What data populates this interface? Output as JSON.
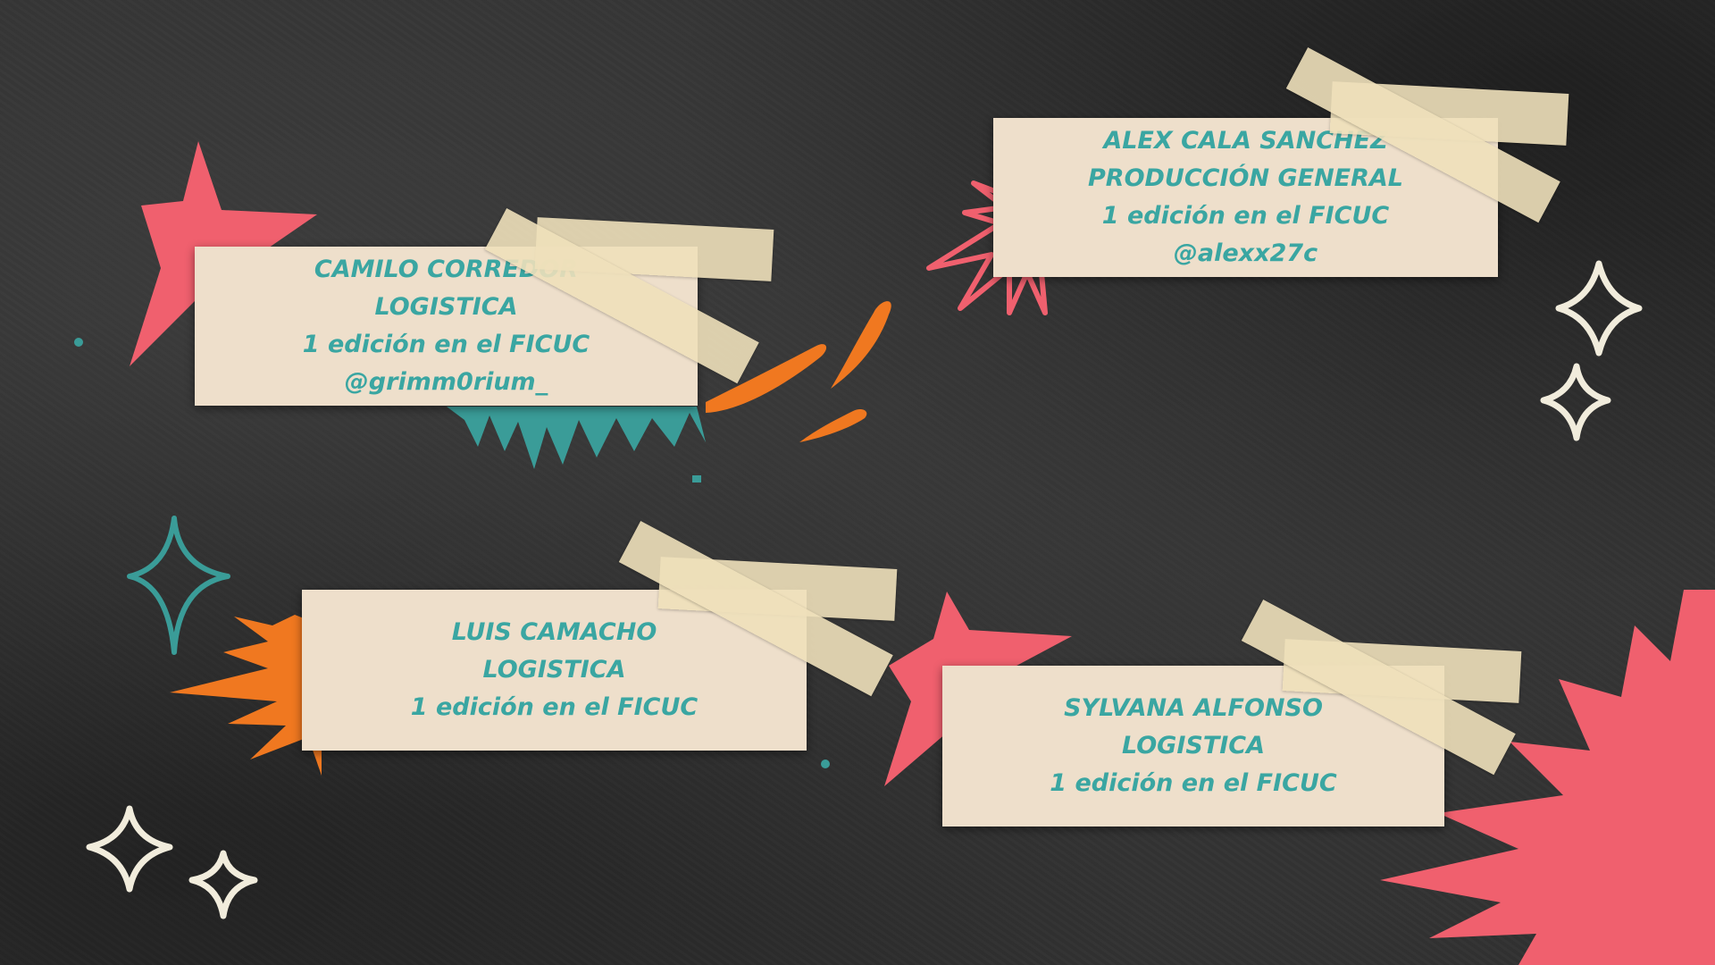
{
  "colors": {
    "background": "#323232",
    "card": "#eedfcb",
    "text_teal": "#3aa6a2",
    "coral": "#f0606e",
    "orange": "#f07820",
    "cream": "#f1ecdc",
    "tape": "#eee0ba"
  },
  "cards": [
    {
      "name": "CAMILO CORREDOR",
      "role": "LOGISTICA",
      "edition": "1 edición en el FICUC",
      "handle": "@grimm0rium_"
    },
    {
      "name": "ALEX CALA SANCHEZ",
      "role": "PRODUCCIÓN GENERAL",
      "edition": "1 edición en el FICUC",
      "handle": "@alexx27c"
    },
    {
      "name": "LUIS CAMACHO",
      "role": "LOGISTICA",
      "edition": "1 edición en el FICUC"
    },
    {
      "name": "SYLVANA ALFONSO",
      "role": "LOGISTICA",
      "edition": "1 edición en el FICUC"
    }
  ],
  "decorations": [
    "coral-star-icon",
    "teal-splash-icon",
    "orange-drops-icon",
    "coral-burst-icon",
    "sparkle-icon",
    "orange-burst-icon",
    "coral-starburst-icon"
  ]
}
